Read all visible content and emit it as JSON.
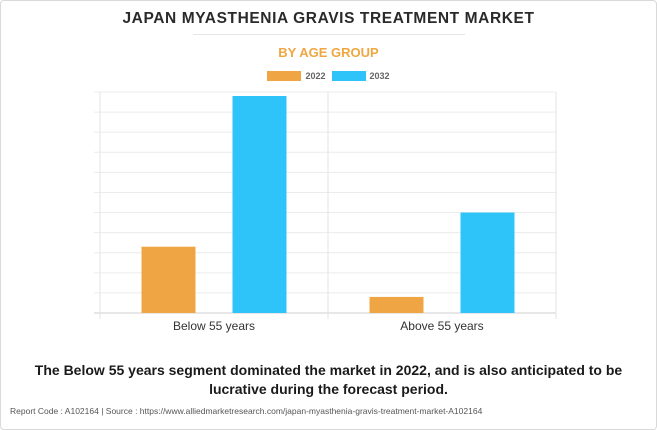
{
  "header": {
    "title": "JAPAN MYASTHENIA GRAVIS TREATMENT MARKET",
    "subtitle": "BY AGE GROUP"
  },
  "colors": {
    "series_2022": "#f0a544",
    "series_2032": "#2ec4fa",
    "subtitle": "#f0a742"
  },
  "chart_data": {
    "type": "bar",
    "categories": [
      "Below 55 years",
      "Above 55 years"
    ],
    "series": [
      {
        "name": "2022",
        "values": [
          33,
          8
        ]
      },
      {
        "name": "2032",
        "values": [
          108,
          50
        ]
      }
    ],
    "ylim": [
      0,
      110
    ],
    "grid": true,
    "legend": "top-center"
  },
  "summary": "The Below 55 years segment dominated the market in 2022, and is also anticipated to be lucrative during the forecast period.",
  "footer": {
    "text": "Report Code : A102164  |  Source : https://www.alliedmarketresearch.com/japan-myasthenia-gravis-treatment-market-A102164"
  }
}
